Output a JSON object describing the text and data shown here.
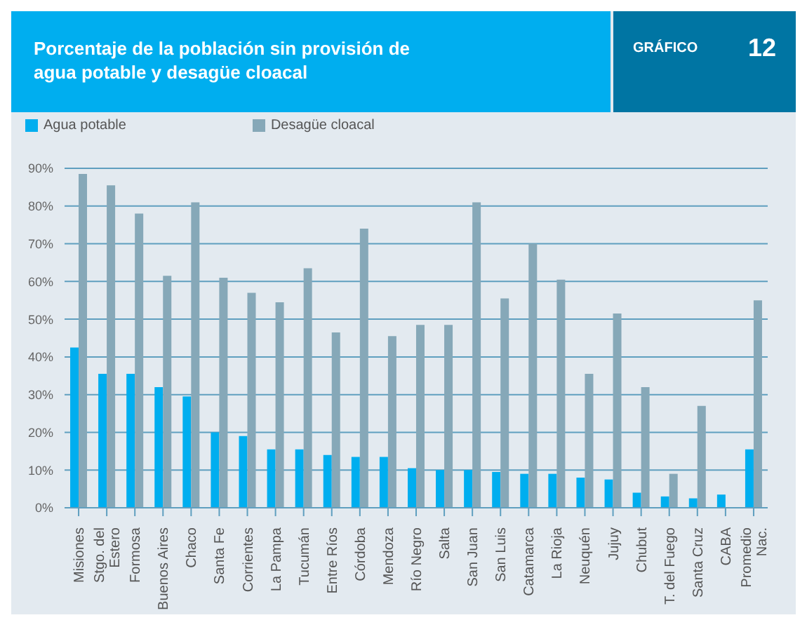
{
  "chart_data": {
    "type": "bar",
    "title": "Porcentaje de la población sin provisión de agua potable y desagüe cloacal",
    "annotations": [
      "GRÁFICO",
      "12"
    ],
    "categories": [
      "Misiones",
      "Stgo. del Estero",
      "Formosa",
      "Buenos Aires",
      "Chaco",
      "Santa Fe",
      "Corrientes",
      "La Pampa",
      "Tucumán",
      "Entre Ríos",
      "Córdoba",
      "Mendoza",
      "Río Negro",
      "Salta",
      "San Juan",
      "San Luis",
      "Catamarca",
      "La Rioja",
      "Neuquén",
      "Jujuy",
      "Chubut",
      "T. del Fuego",
      "Santa Cruz",
      "CABA",
      "Promedio Nac."
    ],
    "series": [
      {
        "name": "Agua potable",
        "color": "#00aeef",
        "values": [
          42.5,
          35.5,
          35.5,
          32,
          29.5,
          20,
          19,
          15.5,
          15.5,
          14,
          13.5,
          13.5,
          10.5,
          10,
          10,
          9.5,
          9,
          9,
          8,
          7.5,
          4,
          3,
          2.5,
          3.5,
          15.5
        ]
      },
      {
        "name": "Desagüe cloacal",
        "color": "#86a8b8",
        "values": [
          88.5,
          85.5,
          78,
          61.5,
          81,
          61,
          57,
          54.5,
          63.5,
          46.5,
          74,
          45.5,
          48.5,
          48.5,
          81,
          55.5,
          70,
          60.5,
          35.5,
          51.5,
          32,
          9,
          27,
          null,
          55
        ]
      }
    ],
    "ylim": [
      0,
      90
    ],
    "yticks": [
      {
        "value": 0,
        "label": "0%"
      },
      {
        "value": 10,
        "label": "10%"
      },
      {
        "value": 20,
        "label": "20%"
      },
      {
        "value": 30,
        "label": "30%"
      },
      {
        "value": 40,
        "label": "40%"
      },
      {
        "value": 50,
        "label": "50%"
      },
      {
        "value": 60,
        "label": "60%"
      },
      {
        "value": 70,
        "label": "70%"
      },
      {
        "value": 80,
        "label": "80%"
      },
      {
        "value": 90,
        "label": "90%"
      }
    ],
    "grid": "y",
    "legend": "top left"
  }
}
